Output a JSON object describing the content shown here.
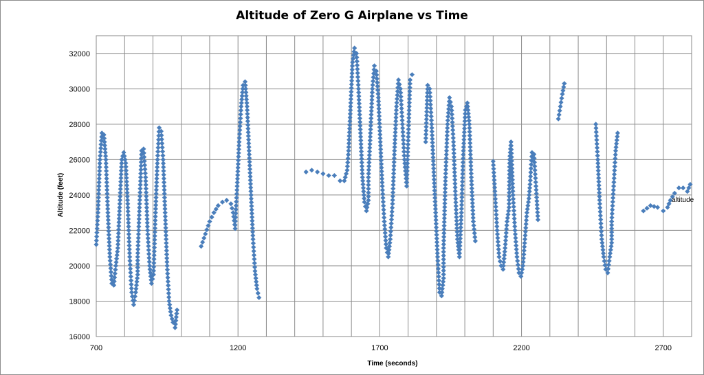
{
  "chart_data": {
    "type": "scatter",
    "title": "Altitude of Zero G Airplane vs Time",
    "xlabel": "Time (seconds)",
    "ylabel": "Altitude (feet)",
    "xlim": [
      700,
      2800
    ],
    "ylim": [
      16000,
      33000
    ],
    "x_ticks": [
      700,
      1200,
      1700,
      2200,
      2700
    ],
    "y_ticks": [
      16000,
      18000,
      20000,
      22000,
      24000,
      26000,
      28000,
      30000,
      32000
    ],
    "x_minor_step": 100,
    "grid": true,
    "legend": "right",
    "marker_color": "#4a7ebb",
    "series": [
      {
        "name": "altitude",
        "segments": [
          [
            700,
            21200
          ],
          [
            706,
            23000
          ],
          [
            713,
            26000
          ],
          [
            720,
            27500
          ],
          [
            727,
            27400
          ],
          [
            734,
            26000
          ],
          [
            741,
            23000
          ],
          [
            748,
            20500
          ],
          [
            755,
            19000
          ],
          [
            762,
            18900
          ],
          [
            769,
            20000
          ],
          [
            776,
            21000
          ],
          [
            783,
            23500
          ],
          [
            790,
            26000
          ],
          [
            797,
            26400
          ],
          [
            804,
            25800
          ],
          [
            811,
            23500
          ],
          [
            818,
            20500
          ],
          [
            825,
            18500
          ],
          [
            832,
            17800
          ],
          [
            839,
            18500
          ],
          [
            846,
            19500
          ],
          [
            846,
            20500
          ],
          [
            853,
            23500
          ],
          [
            860,
            26500
          ],
          [
            867,
            26600
          ],
          [
            874,
            25000
          ],
          [
            881,
            22000
          ],
          [
            888,
            20000
          ],
          [
            895,
            19000
          ],
          [
            902,
            19500
          ],
          [
            909,
            23000
          ],
          [
            916,
            26000
          ],
          [
            922,
            27800
          ],
          [
            929,
            27600
          ],
          [
            936,
            26000
          ],
          [
            943,
            23000
          ],
          [
            950,
            20000
          ],
          [
            957,
            18000
          ],
          [
            964,
            17200
          ],
          [
            971,
            16800
          ],
          [
            978,
            16500
          ],
          [
            985,
            17500
          ],
          [
            1070,
            21100
          ],
          [
            1085,
            21800
          ],
          [
            1100,
            22500
          ],
          [
            1115,
            23000
          ],
          [
            1130,
            23400
          ],
          [
            1145,
            23600
          ],
          [
            1160,
            23700
          ],
          [
            1175,
            23500
          ],
          [
            1183,
            23000
          ],
          [
            1190,
            22100
          ],
          [
            1190,
            22300
          ],
          [
            1197,
            24500
          ],
          [
            1204,
            27000
          ],
          [
            1211,
            29000
          ],
          [
            1218,
            30200
          ],
          [
            1225,
            30400
          ],
          [
            1232,
            29000
          ],
          [
            1239,
            26500
          ],
          [
            1246,
            24000
          ],
          [
            1253,
            21500
          ],
          [
            1260,
            19700
          ],
          [
            1267,
            18700
          ],
          [
            1274,
            18200
          ],
          [
            1440,
            25300
          ],
          [
            1460,
            25400
          ],
          [
            1480,
            25300
          ],
          [
            1500,
            25200
          ],
          [
            1520,
            25100
          ],
          [
            1540,
            25100
          ],
          [
            1560,
            24800
          ],
          [
            1575,
            24800
          ],
          [
            1585,
            25400
          ],
          [
            1590,
            26500
          ],
          [
            1597,
            29000
          ],
          [
            1604,
            31500
          ],
          [
            1611,
            32300
          ],
          [
            1618,
            32000
          ],
          [
            1625,
            30000
          ],
          [
            1632,
            27500
          ],
          [
            1639,
            25000
          ],
          [
            1646,
            23600
          ],
          [
            1653,
            23100
          ],
          [
            1660,
            23700
          ],
          [
            1660,
            25000
          ],
          [
            1667,
            27500
          ],
          [
            1674,
            30000
          ],
          [
            1681,
            31300
          ],
          [
            1688,
            31000
          ],
          [
            1695,
            29500
          ],
          [
            1702,
            27000
          ],
          [
            1709,
            24500
          ],
          [
            1716,
            22500
          ],
          [
            1723,
            21000
          ],
          [
            1730,
            20500
          ],
          [
            1737,
            21500
          ],
          [
            1745,
            23500
          ],
          [
            1752,
            26500
          ],
          [
            1759,
            29000
          ],
          [
            1766,
            30500
          ],
          [
            1773,
            30000
          ],
          [
            1780,
            28000
          ],
          [
            1787,
            26000
          ],
          [
            1795,
            24500
          ],
          [
            1807,
            30500
          ],
          [
            1814,
            30800
          ],
          [
            1862,
            27000
          ],
          [
            1869,
            30200
          ],
          [
            1876,
            30000
          ],
          [
            1883,
            28000
          ],
          [
            1890,
            25500
          ],
          [
            1897,
            23000
          ],
          [
            1904,
            20500
          ],
          [
            1911,
            18500
          ],
          [
            1918,
            18300
          ],
          [
            1925,
            19300
          ],
          [
            1925,
            21000
          ],
          [
            1932,
            25000
          ],
          [
            1939,
            28000
          ],
          [
            1946,
            29500
          ],
          [
            1953,
            29000
          ],
          [
            1960,
            27000
          ],
          [
            1967,
            24000
          ],
          [
            1974,
            21500
          ],
          [
            1981,
            20500
          ],
          [
            1988,
            23000
          ],
          [
            1995,
            26500
          ],
          [
            2002,
            28800
          ],
          [
            2009,
            29200
          ],
          [
            2016,
            28000
          ],
          [
            2023,
            25000
          ],
          [
            2030,
            22500
          ],
          [
            2037,
            21400
          ],
          [
            2100,
            25900
          ],
          [
            2107,
            24000
          ],
          [
            2114,
            22000
          ],
          [
            2121,
            20500
          ],
          [
            2128,
            20000
          ],
          [
            2135,
            19800
          ],
          [
            2142,
            21000
          ],
          [
            2149,
            22500
          ],
          [
            2156,
            23300
          ],
          [
            2158,
            26000
          ],
          [
            2163,
            27000
          ],
          [
            2170,
            24000
          ],
          [
            2177,
            22000
          ],
          [
            2184,
            20500
          ],
          [
            2191,
            19600
          ],
          [
            2198,
            19400
          ],
          [
            2205,
            20000
          ],
          [
            2212,
            21500
          ],
          [
            2219,
            23000
          ],
          [
            2226,
            23800
          ],
          [
            2230,
            24600
          ],
          [
            2237,
            26400
          ],
          [
            2244,
            26300
          ],
          [
            2251,
            24500
          ],
          [
            2258,
            22600
          ],
          [
            2330,
            28300
          ],
          [
            2337,
            29000
          ],
          [
            2344,
            29700
          ],
          [
            2351,
            30300
          ],
          [
            2462,
            28000
          ],
          [
            2469,
            26000
          ],
          [
            2476,
            23500
          ],
          [
            2483,
            21500
          ],
          [
            2490,
            20500
          ],
          [
            2497,
            19800
          ],
          [
            2504,
            19600
          ],
          [
            2511,
            20500
          ],
          [
            2518,
            21300
          ],
          [
            2518,
            22500
          ],
          [
            2525,
            24500
          ],
          [
            2532,
            26500
          ],
          [
            2539,
            27500
          ],
          [
            2630,
            23100
          ],
          [
            2655,
            23400
          ],
          [
            2680,
            23300
          ],
          [
            2700,
            23100
          ],
          [
            2715,
            23300
          ],
          [
            2725,
            23700
          ],
          [
            2740,
            24100
          ],
          [
            2755,
            24400
          ],
          [
            2770,
            24400
          ],
          [
            2785,
            24200
          ],
          [
            2795,
            24600
          ]
        ]
      }
    ]
  }
}
